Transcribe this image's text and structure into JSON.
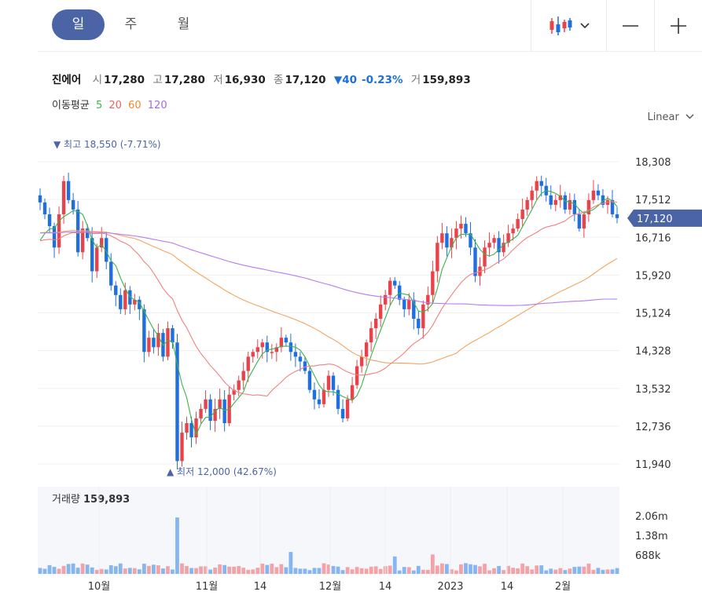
{
  "tabs": [
    "일",
    "주",
    "월"
  ],
  "scale_label": "Linear",
  "scale_chevron": "chevron-down-icon",
  "toolbar": {
    "chart_type_icon": "candlestick-icon",
    "dropdown_icon": "chevron-down-icon",
    "zoom_out_icon": "minus-icon",
    "zoom_in_icon": "plus-icon"
  },
  "info": {
    "name": "진에어",
    "open_label": "시",
    "open": "17,280",
    "high_label": "고",
    "high": "17,280",
    "low_label": "저",
    "low": "16,930",
    "close_label": "종",
    "close": "17,120",
    "change": "▼40",
    "change_pct": "-0.23%",
    "volume_label": "거",
    "volume": "159,893"
  },
  "ma_legend": {
    "title": "이동평균",
    "items": [
      "5",
      "20",
      "60",
      "120"
    ]
  },
  "colors": {
    "up": "#e8434b",
    "down": "#1f6fe0",
    "ma5": "#39b54a",
    "ma20": "#f08080",
    "ma60": "#f4a460",
    "ma120": "#b57cf0",
    "accent": "#4a64a5",
    "vol_up": "#f1a3a8",
    "vol_down": "#86b6ef"
  },
  "chart_data": {
    "type": "candlestick",
    "price_axis": {
      "ticks": [
        "18,308",
        "17,512",
        "16,716",
        "15,920",
        "15,124",
        "14,328",
        "13,532",
        "12,736",
        "11,940"
      ],
      "range": [
        11940,
        18308
      ]
    },
    "current_price": "17,120",
    "high_marker": {
      "label": "최고",
      "value": "18,550",
      "pct": "(-7.71%)"
    },
    "low_marker": {
      "label": "최저",
      "value": "12,000",
      "pct": "(42.67%)"
    },
    "x_ticks": [
      "10월",
      "11월",
      "14",
      "12월",
      "14",
      "2023",
      "14",
      "2월"
    ],
    "close": [
      17450,
      17200,
      16950,
      16500,
      17200,
      17900,
      17500,
      17300,
      16400,
      16900,
      16700,
      16000,
      16500,
      16700,
      16200,
      15700,
      15500,
      15200,
      15600,
      15300,
      15400,
      15200,
      14300,
      14600,
      14400,
      14700,
      14200,
      14800,
      14500,
      12000,
      12600,
      12800,
      12500,
      12900,
      13100,
      13300,
      12850,
      13100,
      13300,
      12800,
      13400,
      13500,
      13700,
      13900,
      14200,
      14300,
      14400,
      14500,
      14300,
      14300,
      14400,
      14600,
      14500,
      14300,
      14200,
      14100,
      13900,
      13500,
      13300,
      13200,
      13500,
      13800,
      13500,
      13100,
      12900,
      13300,
      13600,
      14000,
      14200,
      14500,
      14800,
      15000,
      15300,
      15500,
      15800,
      15700,
      15400,
      15200,
      15400,
      15000,
      14800,
      15300,
      15500,
      16000,
      16600,
      16800,
      16500,
      16700,
      16900,
      17000,
      16800,
      16500,
      15900,
      16100,
      16500,
      16600,
      16700,
      16400,
      16600,
      16800,
      16900,
      17100,
      17300,
      17500,
      17700,
      17900,
      17800,
      17600,
      17400,
      17500,
      17600,
      17300,
      17500,
      17200,
      16900,
      17200,
      17500,
      17700,
      17600,
      17400,
      17500,
      17200,
      17120
    ],
    "volume_axis": [
      "2.06m",
      "1.38m",
      "688k"
    ],
    "volume_label": "거래량",
    "volume_value": "159,893",
    "ma_periods": [
      5,
      20,
      60,
      120
    ]
  }
}
